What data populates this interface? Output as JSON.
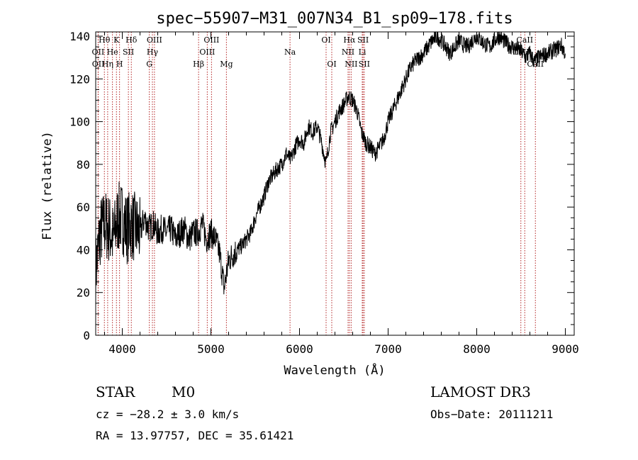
{
  "chart_data": {
    "type": "line",
    "title": "spec−55907−M31_007N34_B1_sp09−178.fits",
    "xlabel": "Wavelength (Å)",
    "ylabel": "Flux (relative)",
    "xlim": [
      3700,
      9100
    ],
    "ylim": [
      0,
      142
    ],
    "x_ticks": [
      4000,
      5000,
      6000,
      7000,
      8000,
      9000
    ],
    "y_ticks": [
      0,
      20,
      40,
      60,
      80,
      100,
      120,
      140
    ],
    "grid": false,
    "series": [
      {
        "x": [
          3700,
          3750,
          3800,
          3850,
          3900,
          3950,
          4000,
          4050,
          4100,
          4150,
          4200,
          4250,
          4300,
          4350,
          4400,
          4450,
          4500,
          4550,
          4600,
          4650,
          4700,
          4750,
          4800,
          4850,
          4900,
          4950,
          5000,
          5050,
          5100,
          5150,
          5200,
          5250,
          5300,
          5350,
          5400,
          5450,
          5500,
          5550,
          5600,
          5650,
          5700,
          5750,
          5800,
          5850,
          5900,
          5950,
          6000,
          6050,
          6100,
          6150,
          6200,
          6250,
          6300,
          6350,
          6400,
          6450,
          6500,
          6550,
          6600,
          6650,
          6700,
          6750,
          6800,
          6850,
          6900,
          6950,
          7000,
          7050,
          7100,
          7150,
          7200,
          7250,
          7300,
          7350,
          7400,
          7450,
          7500,
          7550,
          7600,
          7650,
          7700,
          7750,
          7800,
          7850,
          7900,
          7950,
          8000,
          8050,
          8100,
          8150,
          8200,
          8250,
          8300,
          8350,
          8400,
          8450,
          8500,
          8550,
          8600,
          8650,
          8700,
          8750,
          8800,
          8850,
          8900,
          8950,
          9000
        ],
        "y": [
          30,
          48,
          52,
          50,
          45,
          55,
          55,
          50,
          52,
          50,
          48,
          55,
          50,
          52,
          48,
          50,
          48,
          50,
          45,
          48,
          50,
          45,
          48,
          48,
          52,
          45,
          48,
          45,
          38,
          22,
          35,
          38,
          40,
          42,
          45,
          48,
          55,
          60,
          65,
          72,
          75,
          78,
          80,
          85,
          82,
          88,
          92,
          90,
          98,
          95,
          98,
          90,
          80,
          95,
          100,
          105,
          108,
          112,
          110,
          105,
          95,
          90,
          88,
          85,
          88,
          92,
          100,
          105,
          110,
          115,
          120,
          125,
          128,
          130,
          132,
          135,
          138,
          140,
          138,
          135,
          132,
          135,
          138,
          136,
          135,
          138,
          140,
          138,
          136,
          135,
          138,
          140,
          138,
          136,
          135,
          134,
          133,
          130,
          132,
          128,
          130,
          131,
          132,
          133,
          134,
          136,
          132
        ]
      }
    ],
    "line_markers": [
      {
        "label": "Hθ",
        "x": 3798,
        "row": 0
      },
      {
        "label": "K",
        "x": 3934,
        "row": 0
      },
      {
        "label": "Hδ",
        "x": 4102,
        "row": 0
      },
      {
        "label": "OIII",
        "x": 4363,
        "row": 0
      },
      {
        "label": "OIII",
        "x": 5007,
        "row": 0
      },
      {
        "label": "OI",
        "x": 6300,
        "row": 0
      },
      {
        "label": "Hα",
        "x": 6563,
        "row": 0
      },
      {
        "label": "SII",
        "x": 6717,
        "row": 0
      },
      {
        "label": "CaII",
        "x": 8542,
        "row": 0
      },
      {
        "label": "OII",
        "x": 3727,
        "row": 1
      },
      {
        "label": "He",
        "x": 3889,
        "row": 1
      },
      {
        "label": "SII",
        "x": 4069,
        "row": 1
      },
      {
        "label": "Hγ",
        "x": 4340,
        "row": 1
      },
      {
        "label": "OIII",
        "x": 4959,
        "row": 1
      },
      {
        "label": "Na",
        "x": 5893,
        "row": 1
      },
      {
        "label": "NII",
        "x": 6548,
        "row": 1
      },
      {
        "label": "Li",
        "x": 6708,
        "row": 1
      },
      {
        "label": "CaII",
        "x": 8498,
        "row": 1
      },
      {
        "label": "OII",
        "x": 3729,
        "row": 2
      },
      {
        "label": "Hη",
        "x": 3835,
        "row": 2
      },
      {
        "label": "H",
        "x": 3969,
        "row": 2
      },
      {
        "label": "G",
        "x": 4305,
        "row": 2
      },
      {
        "label": "Hβ",
        "x": 4861,
        "row": 2
      },
      {
        "label": "Mg",
        "x": 5175,
        "row": 2
      },
      {
        "label": "OI",
        "x": 6364,
        "row": 2
      },
      {
        "label": "NII",
        "x": 6583,
        "row": 2
      },
      {
        "label": "SII",
        "x": 6731,
        "row": 2
      },
      {
        "label": "CaII",
        "x": 8662,
        "row": 2
      }
    ]
  },
  "info": {
    "class_label": "STAR",
    "subclass": "M0",
    "survey": "LAMOST DR3",
    "redshift": "cz = −28.2 ± 3.0 km/s",
    "obs_date": "Obs−Date: 20111211",
    "coords": "RA =  13.97757, DEC =  35.61421"
  },
  "colors": {
    "marker": "#b22222",
    "axis": "#000000",
    "spectrum": "#000000"
  }
}
